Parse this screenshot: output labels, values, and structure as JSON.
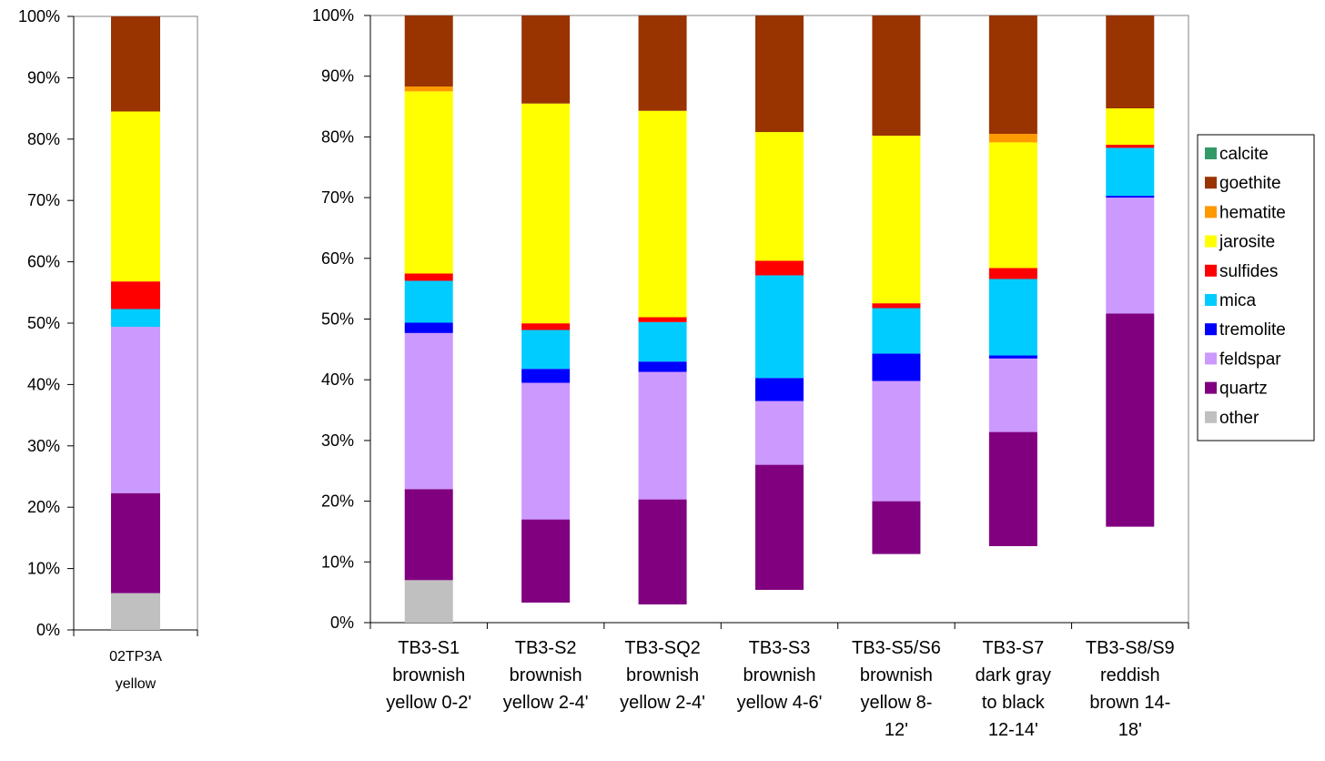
{
  "colors": {
    "calcite": "#339966",
    "goethite": "#993300",
    "hematite": "#ff9900",
    "jarosite": "#ffff00",
    "sulfides": "#ff0000",
    "mica": "#00ccff",
    "tremolite": "#0000ff",
    "feldspar": "#cc99ff",
    "quartz": "#800080",
    "other": "#c0c0c0"
  },
  "chart_data": [
    {
      "type": "bar",
      "stacked": "percent",
      "categories": [
        [
          "02TP3A",
          "yellow"
        ]
      ],
      "series_order": [
        "other",
        "quartz",
        "feldspar",
        "tremolite",
        "mica",
        "sulfides",
        "jarosite",
        "hematite",
        "goethite",
        "calcite"
      ],
      "segments": [
        [
          {
            "mineral": "other",
            "from": 0,
            "to": 6
          },
          {
            "mineral": "quartz",
            "from": 6,
            "to": 22.3
          },
          {
            "mineral": "feldspar",
            "from": 22.3,
            "to": 49.4
          },
          {
            "mineral": "mica",
            "from": 49.4,
            "to": 52.3
          },
          {
            "mineral": "sulfides",
            "from": 52.3,
            "to": 56.8
          },
          {
            "mineral": "jarosite",
            "from": 56.8,
            "to": 84.5
          },
          {
            "mineral": "goethite",
            "from": 84.5,
            "to": 100
          }
        ]
      ],
      "ylim": [
        0,
        100
      ],
      "yticks": [
        "0%",
        "10%",
        "20%",
        "30%",
        "40%",
        "50%",
        "60%",
        "70%",
        "80%",
        "90%",
        "100%"
      ]
    },
    {
      "type": "bar",
      "stacked": "percent",
      "categories": [
        [
          "TB3-S1",
          "brownish",
          "yellow 0-2'"
        ],
        [
          "TB3-S2",
          "brownish",
          "yellow 2-4'"
        ],
        [
          "TB3-SQ2",
          "brownish",
          "yellow 2-4'"
        ],
        [
          "TB3-S3",
          "brownish",
          "yellow 4-6'"
        ],
        [
          "TB3-S5/S6",
          "brownish",
          "yellow 8-",
          "12'"
        ],
        [
          "TB3-S7",
          "dark gray",
          "to black",
          "12-14'"
        ],
        [
          "TB3-S8/S9",
          "reddish",
          "brown 14-",
          "18'"
        ]
      ],
      "segments": [
        [
          {
            "mineral": "other",
            "from": 0,
            "to": 7
          },
          {
            "mineral": "quartz",
            "from": 7,
            "to": 22
          },
          {
            "mineral": "feldspar",
            "from": 22,
            "to": 47.7
          },
          {
            "mineral": "tremolite",
            "from": 47.7,
            "to": 49.4
          },
          {
            "mineral": "mica",
            "from": 49.4,
            "to": 56.3
          },
          {
            "mineral": "sulfides",
            "from": 56.3,
            "to": 57.5
          },
          {
            "mineral": "jarosite",
            "from": 57.5,
            "to": 87.5
          },
          {
            "mineral": "hematite",
            "from": 87.5,
            "to": 88.3
          },
          {
            "mineral": "goethite",
            "from": 88.3,
            "to": 100
          }
        ],
        [
          {
            "mineral": "quartz",
            "from": 3.3,
            "to": 17
          },
          {
            "mineral": "feldspar",
            "from": 17,
            "to": 39.5
          },
          {
            "mineral": "tremolite",
            "from": 39.5,
            "to": 41.8
          },
          {
            "mineral": "mica",
            "from": 41.8,
            "to": 48.2
          },
          {
            "mineral": "sulfides",
            "from": 48.2,
            "to": 49.3
          },
          {
            "mineral": "jarosite",
            "from": 49.3,
            "to": 85.5
          },
          {
            "mineral": "goethite",
            "from": 85.5,
            "to": 100
          }
        ],
        [
          {
            "mineral": "quartz",
            "from": 3,
            "to": 20.3
          },
          {
            "mineral": "feldspar",
            "from": 20.3,
            "to": 41.3
          },
          {
            "mineral": "tremolite",
            "from": 41.3,
            "to": 43
          },
          {
            "mineral": "mica",
            "from": 43,
            "to": 49.5
          },
          {
            "mineral": "sulfides",
            "from": 49.5,
            "to": 50.3
          },
          {
            "mineral": "jarosite",
            "from": 50.3,
            "to": 84.3
          },
          {
            "mineral": "goethite",
            "from": 84.3,
            "to": 100
          }
        ],
        [
          {
            "mineral": "quartz",
            "from": 5.4,
            "to": 26
          },
          {
            "mineral": "feldspar",
            "from": 26,
            "to": 36.5
          },
          {
            "mineral": "tremolite",
            "from": 36.5,
            "to": 40.3
          },
          {
            "mineral": "mica",
            "from": 40.3,
            "to": 57.2
          },
          {
            "mineral": "sulfides",
            "from": 57.2,
            "to": 59.6
          },
          {
            "mineral": "jarosite",
            "from": 59.6,
            "to": 80.8
          },
          {
            "mineral": "goethite",
            "from": 80.8,
            "to": 100
          }
        ],
        [
          {
            "mineral": "quartz",
            "from": 11.3,
            "to": 20
          },
          {
            "mineral": "feldspar",
            "from": 20,
            "to": 39.8
          },
          {
            "mineral": "tremolite",
            "from": 39.8,
            "to": 44.3
          },
          {
            "mineral": "mica",
            "from": 44.3,
            "to": 51.8
          },
          {
            "mineral": "sulfides",
            "from": 51.8,
            "to": 52.6
          },
          {
            "mineral": "jarosite",
            "from": 52.6,
            "to": 80.2
          },
          {
            "mineral": "goethite",
            "from": 80.2,
            "to": 100
          }
        ],
        [
          {
            "mineral": "quartz",
            "from": 12.6,
            "to": 31.4
          },
          {
            "mineral": "feldspar",
            "from": 31.4,
            "to": 43.5
          },
          {
            "mineral": "tremolite",
            "from": 43.5,
            "to": 44
          },
          {
            "mineral": "mica",
            "from": 44,
            "to": 56.6
          },
          {
            "mineral": "sulfides",
            "from": 56.6,
            "to": 58.4
          },
          {
            "mineral": "jarosite",
            "from": 58.4,
            "to": 79.1
          },
          {
            "mineral": "hematite",
            "from": 79.1,
            "to": 80.5
          },
          {
            "mineral": "goethite",
            "from": 80.5,
            "to": 100
          }
        ],
        [
          {
            "mineral": "quartz",
            "from": 15.8,
            "to": 50.9
          },
          {
            "mineral": "feldspar",
            "from": 50.9,
            "to": 70
          },
          {
            "mineral": "tremolite",
            "from": 70,
            "to": 70.3
          },
          {
            "mineral": "mica",
            "from": 70.3,
            "to": 78.2
          },
          {
            "mineral": "sulfides",
            "from": 78.2,
            "to": 78.7
          },
          {
            "mineral": "jarosite",
            "from": 78.7,
            "to": 84.7
          },
          {
            "mineral": "goethite",
            "from": 84.7,
            "to": 100
          }
        ]
      ],
      "ylim": [
        0,
        100
      ],
      "yticks": [
        "0%",
        "10%",
        "20%",
        "30%",
        "40%",
        "50%",
        "60%",
        "70%",
        "80%",
        "90%",
        "100%"
      ],
      "legend": {
        "position": "right",
        "entries": [
          "calcite",
          "goethite",
          "hematite",
          "jarosite",
          "sulfides",
          "mica",
          "tremolite",
          "feldspar",
          "quartz",
          "other"
        ]
      }
    }
  ]
}
